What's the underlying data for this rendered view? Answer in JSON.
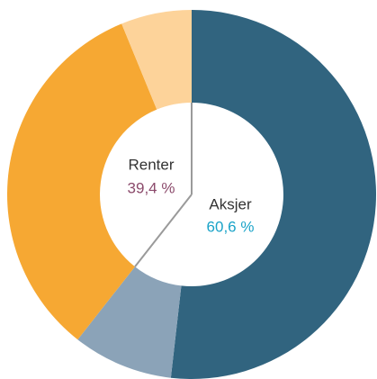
{
  "chart_data": {
    "type": "donut",
    "groups": [
      {
        "name": "Aksjer",
        "value": 60.6,
        "value_label": "60,6 %",
        "label_color": "#1aa3c8",
        "values": [
          51.8,
          8.8
        ],
        "colors": [
          "#31647f",
          "#8ba3b8"
        ]
      },
      {
        "name": "Renter",
        "value": 39.4,
        "value_label": "39,4 %",
        "label_color": "#8b4a6b",
        "values": [
          33.2,
          6.2
        ],
        "colors": [
          "#f6a833",
          "#fdd39a"
        ]
      }
    ]
  }
}
